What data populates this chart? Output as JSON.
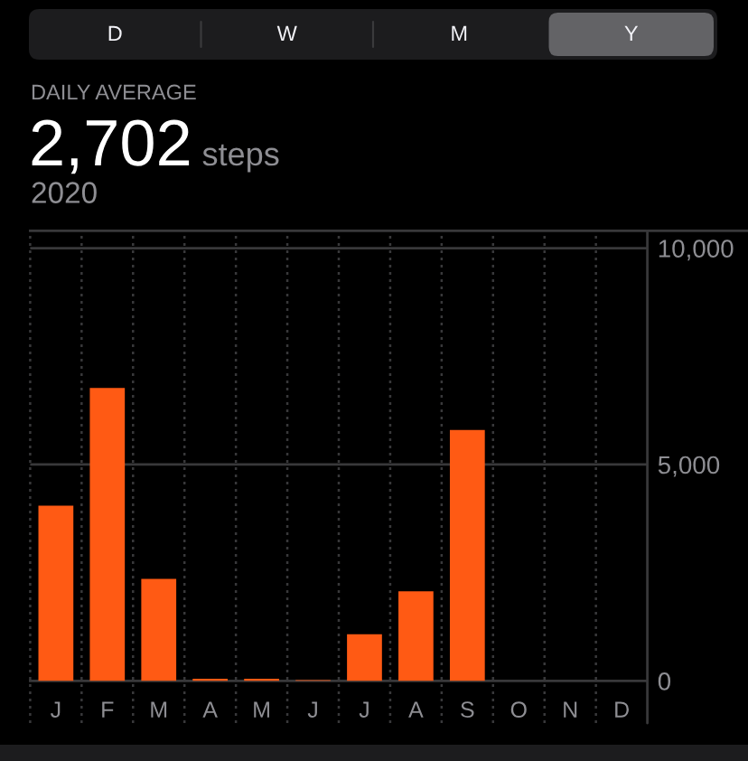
{
  "chart_data": {
    "type": "bar",
    "title": "DAILY AVERAGE",
    "subtitle": "2,702 steps",
    "annotations": [
      "2020",
      "D",
      "W",
      "M",
      "Y"
    ],
    "categories": [
      "J",
      "F",
      "M",
      "A",
      "M",
      "J",
      "J",
      "A",
      "S",
      "O",
      "N",
      "D"
    ],
    "values": [
      4050,
      6770,
      2360,
      50,
      50,
      20,
      1080,
      2070,
      5800,
      null,
      null,
      null
    ],
    "color": "#ff5a14",
    "ylim": [
      0,
      10400
    ],
    "yticks": [
      0,
      {
        "value": 5000,
        "label": "5,000"
      },
      {
        "value": 10000,
        "label": "10,000"
      }
    ],
    "grid": true
  }
}
